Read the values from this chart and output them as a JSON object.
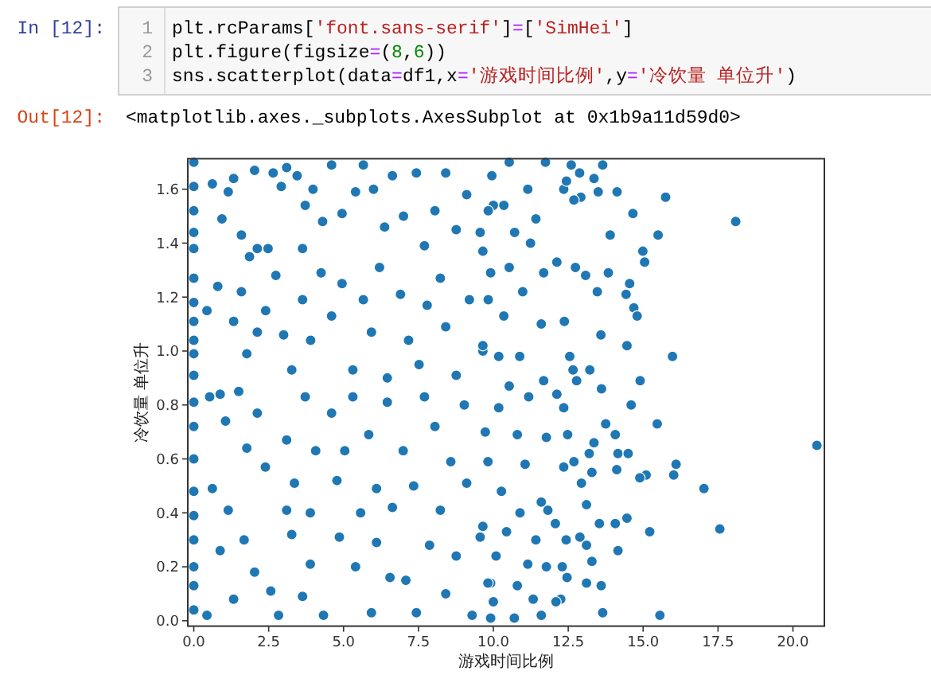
{
  "chart_data": {
    "type": "scatter",
    "xlabel": "游戏时间比例",
    "ylabel": "冷饮量 单位升",
    "color": "#1f77b4",
    "marker": "circle",
    "xlim": [
      -0.2,
      21.05
    ],
    "ylim": [
      -0.02,
      1.713
    ],
    "xticks": [
      {
        "value": 0,
        "label": "0.0"
      },
      2.5,
      {
        "value": 5,
        "label": "5.0"
      },
      7.5,
      {
        "value": 10,
        "label": "10.0"
      },
      12.5,
      {
        "value": 15,
        "label": "15.0"
      },
      17.5,
      {
        "value": 20,
        "label": "20.0"
      }
    ],
    "yticks": [
      {
        "value": 0,
        "label": "0.0"
      },
      0.2,
      0.4,
      0.6,
      0.8,
      {
        "value": 1,
        "label": "1.0"
      },
      1.2,
      1.4,
      1.6
    ],
    "x": [
      0,
      0,
      0,
      0,
      0,
      0,
      0,
      0,
      0,
      0,
      0,
      0,
      0,
      0,
      0,
      0,
      0,
      0,
      0,
      0,
      0.62,
      0.94,
      1.15,
      1.33,
      1.59,
      2.03,
      1.86,
      2.12,
      2.48,
      2.65,
      2.92,
      3.1,
      3.45,
      3.72,
      3.63,
      3.98,
      4.3,
      4.6,
      4.95,
      5.4,
      5.66,
      6.0,
      6.37,
      6.63,
      7.0,
      7.43,
      7.7,
      8.05,
      8.41,
      8.76,
      9.11,
      9.56,
      10.0,
      0.44,
      0.8,
      1.33,
      1.59,
      2.12,
      1.77,
      2.4,
      2.74,
      3.0,
      3.27,
      3.63,
      3.9,
      4.25,
      4.6,
      4.95,
      5.31,
      5.66,
      5.93,
      6.2,
      6.46,
      6.9,
      7.17,
      7.52,
      7.79,
      8.23,
      8.41,
      8.76,
      9.2,
      9.65,
      9.91,
      0.88,
      0.53,
      1.06,
      1.5,
      1.77,
      2.12,
      2.39,
      0.62,
      1.15,
      0.88,
      1.68,
      2.03,
      1.33,
      0.44,
      2.57,
      2.83,
      3.1,
      3.1,
      3.36,
      3.27,
      3.72,
      3.89,
      4.07,
      3.89,
      3.63,
      4.33,
      4.6,
      4.78,
      4.86,
      5.04,
      5.4,
      5.31,
      5.57,
      5.84,
      6.1,
      6.1,
      5.93,
      6.46,
      6.55,
      6.63,
      6.99,
      7.08,
      7.34,
      7.43,
      7.7,
      7.87,
      8.05,
      8.23,
      8.41,
      8.58,
      8.76,
      9.03,
      9.11,
      9.29,
      9.56,
      9.73,
      9.91,
      10.53,
      9.95,
      11.15,
      10.35,
      11.42,
      9.83,
      10.71,
      9.65,
      11.24,
      10.53,
      11.68,
      9.83,
      10.98,
      10.35,
      11.6,
      9.65,
      10.88,
      10.18,
      11.68,
      10.53,
      10.18,
      11.18,
      10.8,
      11.77,
      9.82,
      11.06,
      10.27,
      11.6,
      10.89,
      9.65,
      10.44,
      11.42,
      10.09,
      11.15,
      9.82,
      10.8,
      10.0,
      18.09,
      15.75,
      14.66,
      15.5,
      14.99,
      15.05,
      13.9,
      14.13,
      13.65,
      13.36,
      12.88,
      12.6,
      11.74,
      13.5,
      12.92,
      12.69,
      12.35,
      12.44,
      13.84,
      14.55,
      14.43,
      13.47,
      13.08,
      12.74,
      12.12,
      14.69,
      14.8,
      12.37,
      13.59,
      14.46,
      15.98,
      12.55,
      12.66,
      13.22,
      12.78,
      14.9,
      13.61,
      12.12,
      20.8,
      17.56,
      17.03,
      16.1,
      16.02,
      15.47,
      15.1,
      14.89,
      15.22,
      15.56,
      14.6,
      14.07,
      14.16,
      14.5,
      14.12,
      14.46,
      14.07,
      14.16,
      13.54,
      13.6,
      13.65,
      13.75,
      13.36,
      13.2,
      13.29,
      12.94,
      13.11,
      12.89,
      13.11,
      13.29,
      13.11,
      12.43,
      12.3,
      12.25,
      12.09,
      12.46,
      12.35,
      12.69,
      12.35,
      12.48,
      12.07,
      11.82,
      11.77,
      11.6,
      10.7,
      9.91,
      11.33
    ],
    "values": [
      1.7,
      1.61,
      1.52,
      1.44,
      1.38,
      1.27,
      1.18,
      1.11,
      1.04,
      0.99,
      0.91,
      0.81,
      0.72,
      0.6,
      0.48,
      0.39,
      0.3,
      0.2,
      0.13,
      0.04,
      1.62,
      1.49,
      1.59,
      1.64,
      1.43,
      1.67,
      1.35,
      1.38,
      1.38,
      1.66,
      1.61,
      1.68,
      1.65,
      1.54,
      1.38,
      1.6,
      1.48,
      1.69,
      1.51,
      1.59,
      1.69,
      1.6,
      1.46,
      1.65,
      1.5,
      1.66,
      1.39,
      1.52,
      1.66,
      1.45,
      1.58,
      1.44,
      1.54,
      1.15,
      1.24,
      1.11,
      1.22,
      1.07,
      0.99,
      1.15,
      1.28,
      1.06,
      0.93,
      1.19,
      1.04,
      1.29,
      1.13,
      1.25,
      0.93,
      1.19,
      1.07,
      1.31,
      0.9,
      1.21,
      1.04,
      0.95,
      1.17,
      1.27,
      1.09,
      0.91,
      1.19,
      1.0,
      1.29,
      0.84,
      0.83,
      0.74,
      0.85,
      0.64,
      0.77,
      0.57,
      0.49,
      0.41,
      0.26,
      0.3,
      0.18,
      0.08,
      0.02,
      0.11,
      0.02,
      0.67,
      0.41,
      0.51,
      0.32,
      0.83,
      0.4,
      0.63,
      0.21,
      0.09,
      0.02,
      0.77,
      0.52,
      0.31,
      0.63,
      0.2,
      0.83,
      0.4,
      0.69,
      0.49,
      0.29,
      0.03,
      0.81,
      0.16,
      0.42,
      0.63,
      0.15,
      0.5,
      0.03,
      0.83,
      0.28,
      0.72,
      0.41,
      0.1,
      0.59,
      0.24,
      0.8,
      0.51,
      0.02,
      0.31,
      0.7,
      0.14,
      1.7,
      1.65,
      1.6,
      1.54,
      1.49,
      1.52,
      1.44,
      1.37,
      1.4,
      1.31,
      1.29,
      1.19,
      1.22,
      1.13,
      1.1,
      1.02,
      0.98,
      0.98,
      0.89,
      0.87,
      0.79,
      0.83,
      0.69,
      0.68,
      0.59,
      0.58,
      0.48,
      0.44,
      0.4,
      0.35,
      0.33,
      0.3,
      0.24,
      0.21,
      0.14,
      0.13,
      0.07,
      1.48,
      1.57,
      1.51,
      1.43,
      1.37,
      1.33,
      1.43,
      1.59,
      1.69,
      1.64,
      1.66,
      1.69,
      1.7,
      1.59,
      1.57,
      1.56,
      1.6,
      1.63,
      1.29,
      1.25,
      1.21,
      1.22,
      1.28,
      1.31,
      1.33,
      1.16,
      1.13,
      1.11,
      1.06,
      1.02,
      0.98,
      0.98,
      0.93,
      0.93,
      0.89,
      0.89,
      0.86,
      0.84,
      0.65,
      0.34,
      0.49,
      0.58,
      0.54,
      0.73,
      0.54,
      0.53,
      0.33,
      0.02,
      0.8,
      0.69,
      0.62,
      0.62,
      0.56,
      0.38,
      0.36,
      0.26,
      0.36,
      0.13,
      0.03,
      0.73,
      0.66,
      0.62,
      0.55,
      0.51,
      0.43,
      0.31,
      0.28,
      0.22,
      0.14,
      0.3,
      0.2,
      0.08,
      0.07,
      0.16,
      0.57,
      0.59,
      0.79,
      0.69,
      0.36,
      0.41,
      0.2,
      0.02,
      0.01,
      0.01,
      0.08
    ],
    "annotations": [
      "In [12]:",
      "1",
      "plt.rcParams['font.sans-serif']=['SimHei']",
      "2",
      "plt.figure(figsize=(8,6))",
      "3",
      "sns.scatterplot(data=df1,x='游戏时间比例',y='冷饮量 单位升')",
      "Out[12]:",
      "<matplotlib.axes._subplots.AxesSubplot at 0x1b9a11d59d0>"
    ]
  }
}
